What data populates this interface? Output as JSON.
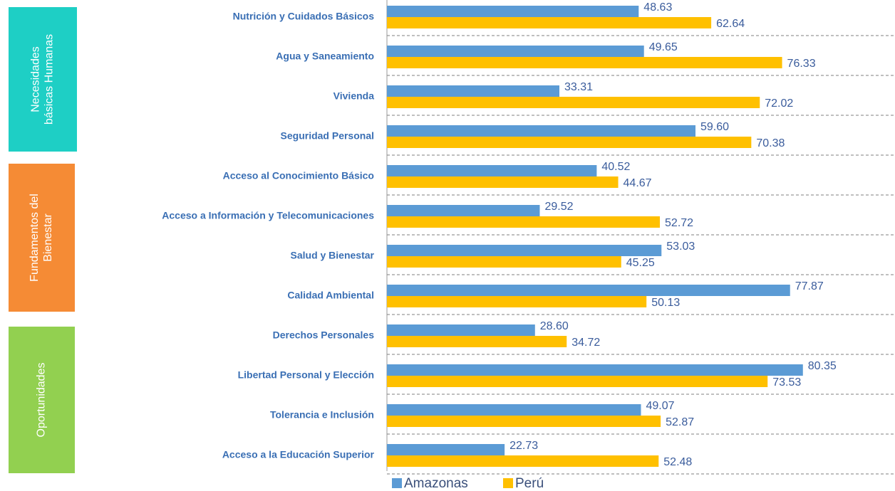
{
  "chart_data": {
    "type": "bar",
    "orientation": "horizontal",
    "categories": [
      "Nutrición y Cuidados Básicos",
      "Agua y Saneamiento",
      "Vivienda",
      "Seguridad Personal",
      "Acceso al Conocimiento Básico",
      "Acceso a Información y Telecomunicaciones",
      "Salud y Bienestar",
      "Calidad Ambiental",
      "Derechos Personales",
      "Libertad Personal y Elección",
      "Tolerancia e Inclusión",
      "Acceso a la Educación Superior"
    ],
    "series": [
      {
        "name": "Amazonas",
        "color": "#5b9bd5",
        "values": [
          48.63,
          49.65,
          33.31,
          59.6,
          40.52,
          29.52,
          53.03,
          77.87,
          28.6,
          80.35,
          49.07,
          22.73
        ],
        "value_labels": [
          "48.63",
          "49.65",
          "33.31",
          "59.60",
          "40.52",
          "29.52",
          "53.03",
          "77.87",
          "28.60",
          "80.35",
          "49.07",
          "22.73"
        ]
      },
      {
        "name": "Perú",
        "color": "#ffc000",
        "values": [
          62.64,
          76.33,
          72.02,
          70.38,
          44.67,
          52.72,
          45.25,
          50.13,
          34.72,
          73.53,
          52.87,
          52.48
        ],
        "value_labels": [
          "62.64",
          "76.33",
          "72.02",
          "70.38",
          "44.67",
          "52.72",
          "45.25",
          "50.13",
          "34.72",
          "73.53",
          "52.87",
          "52.48"
        ]
      }
    ],
    "groups": [
      {
        "name": "Necesidades básicas Humanas",
        "color": "#1ecfc5"
      },
      {
        "name": "Fundamentos del Bienestar",
        "color": "#f58b35"
      },
      {
        "name": "Oportunidades",
        "color": "#92d050"
      }
    ],
    "xlim": [
      0,
      98
    ]
  }
}
